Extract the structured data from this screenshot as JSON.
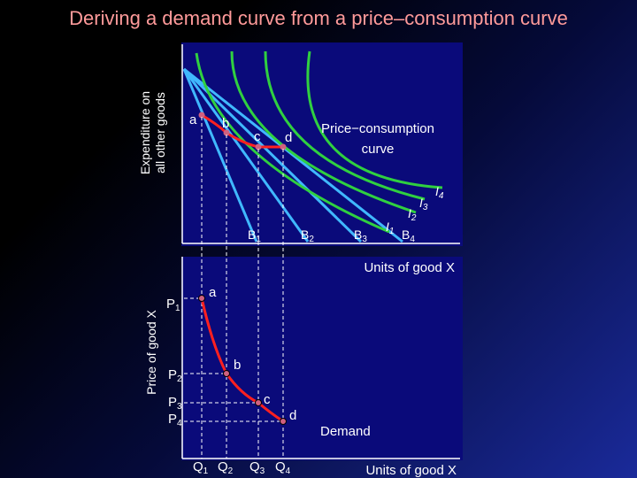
{
  "title": "Deriving a demand curve from a price–consumption curve",
  "top_panel": {
    "y_axis_label_line1": "Expenditure on",
    "y_axis_label_line2": "all other goods",
    "x_axis_label": "Units of good X",
    "curve_label_line1": "Price−consumption",
    "curve_label_line2": "curve",
    "points": [
      "a",
      "b",
      "c",
      "d"
    ],
    "budget_labels": [
      {
        "base": "B",
        "sub": "1"
      },
      {
        "base": "B",
        "sub": "2"
      },
      {
        "base": "B",
        "sub": "3"
      },
      {
        "base": "B",
        "sub": "4"
      }
    ],
    "indifference_labels": [
      {
        "base": "I",
        "sub": "1"
      },
      {
        "base": "I",
        "sub": "2"
      },
      {
        "base": "I",
        "sub": "3"
      },
      {
        "base": "I",
        "sub": "4"
      }
    ]
  },
  "bottom_panel": {
    "y_axis_label": "Price of good X",
    "x_axis_label": "Units of good X",
    "curve_label": "Demand",
    "points": [
      "a",
      "b",
      "c",
      "d"
    ],
    "price_labels": [
      {
        "base": "P",
        "sub": "1"
      },
      {
        "base": "P",
        "sub": "2"
      },
      {
        "base": "P",
        "sub": "3"
      },
      {
        "base": "P",
        "sub": "4"
      }
    ],
    "quantity_labels": [
      {
        "base": "Q",
        "sub": "1"
      },
      {
        "base": "Q",
        "sub": "2"
      },
      {
        "base": "Q",
        "sub": "3"
      },
      {
        "base": "Q",
        "sub": "4"
      }
    ]
  },
  "colors": {
    "title": "#ff9a9a",
    "curve": "#ff2020",
    "budget_line": "#40b8ff",
    "indifference": "#30d040",
    "point": "#d06080",
    "background_panel": "#0a0a7a"
  }
}
